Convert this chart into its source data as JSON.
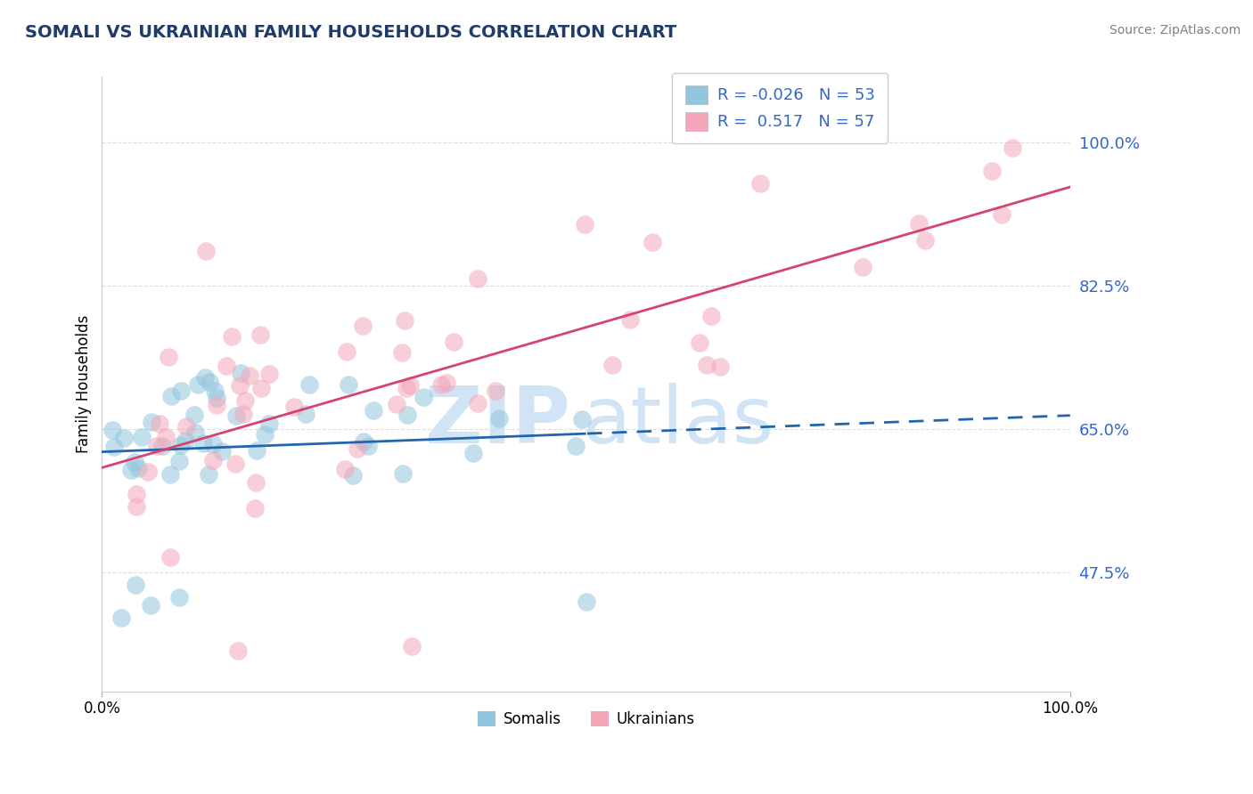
{
  "title": "SOMALI VS UKRAINIAN FAMILY HOUSEHOLDS CORRELATION CHART",
  "source": "Source: ZipAtlas.com",
  "ylabel": "Family Households",
  "ytick_values": [
    47.5,
    65.0,
    82.5,
    100.0
  ],
  "xlim": [
    0.0,
    100.0
  ],
  "ylim": [
    33.0,
    108.0
  ],
  "legend_r_somali": "-0.026",
  "legend_n_somali": "53",
  "legend_r_ukrainian": "0.517",
  "legend_n_ukrainian": "57",
  "somali_color": "#92C5DE",
  "ukrainian_color": "#F4A6B8",
  "somali_line_color": "#2166AC",
  "ukrainian_line_color": "#D6436E",
  "grid_color": "#DDDDDD",
  "watermark_color": "#D0E4F5",
  "background": "#FFFFFF",
  "somali_solid_end": 50,
  "title_color": "#1F3B6B",
  "ytick_color": "#3366CC"
}
